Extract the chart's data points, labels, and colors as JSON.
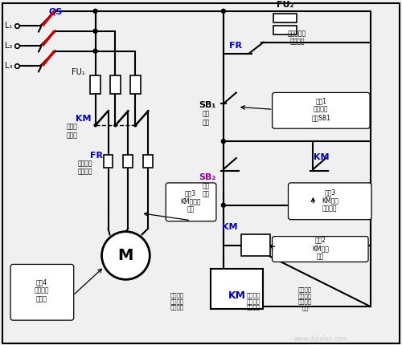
{
  "bg_color": "#f0f0f0",
  "blue": "#0000cc",
  "purple": "#990099",
  "red": "#cc0000",
  "black": "#000000",
  "white": "#ffffff",
  "labels": {
    "L1": "L₁",
    "L2": "L₂",
    "L3": "L₃",
    "QS": "QS",
    "FU1": "FU₁",
    "FU2": "FU₂",
    "FR_main": "FR",
    "FR_ctrl": "FR",
    "KM_main": "KM",
    "KM_aux": "KM",
    "KM_coil": "KM",
    "SB1": "SB₁",
    "SB2": "SB₂",
    "M": "M",
    "km_main_label": "接触器\n主触头",
    "fr_main_label": "热继电器\n的热元件",
    "step3_main": "步骤3\nKM主触头\n分断",
    "step4": "步骤4\n电动机失\n电停转",
    "fr_ctrl_label": "热继电器的\n常闭触头",
    "step1": "步骤1\n按下停止\n按鈕SB1",
    "SB1_label": "停止\n按鈕",
    "SB2_label": "启动\n按鈕",
    "step3_aux": "步骤3\nKM自锁\n触头分断",
    "step2": "步骤2\nKM线圈\n失电",
    "bottom_main": "接触器的\n主触头接\n在主电路",
    "bottom_coil": "接触器的\n线圈接在\n控制电路",
    "bottom_aux": "接触器的\n辅助触头\n接在控制\n电路"
  }
}
